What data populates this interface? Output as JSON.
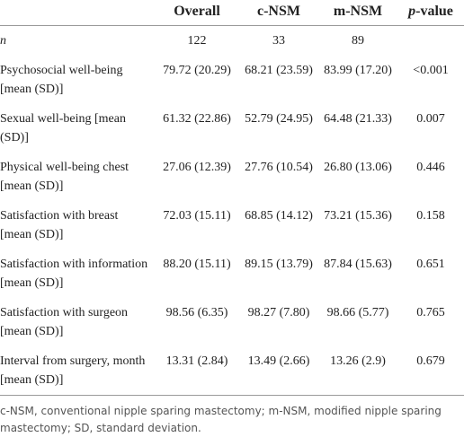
{
  "table": {
    "header": [
      "",
      "Overall",
      "c-NSM",
      "m-NSM",
      "p-value"
    ],
    "rows": [
      [
        "n",
        "122",
        "33",
        "89",
        ""
      ],
      [
        "Psychosocial well-being [mean (SD)]",
        "79.72 (20.29)",
        "68.21 (23.59)",
        "83.99 (17.20)",
        "<0.001"
      ],
      [
        "Sexual well-being [mean (SD)]",
        "61.32 (22.86)",
        "52.79 (24.95)",
        "64.48 (21.33)",
        "0.007"
      ],
      [
        "Physical well-being chest [mean (SD)]",
        "27.06 (12.39)",
        "27.76 (10.54)",
        "26.80 (13.06)",
        "0.446"
      ],
      [
        "Satisfaction with breast [mean (SD)]",
        "72.03 (15.11)",
        "68.85 (14.12)",
        "73.21 (15.36)",
        "0.158"
      ],
      [
        "Satisfaction with information [mean (SD)]",
        "88.20 (15.11)",
        "89.15 (13.79)",
        "87.84 (15.63)",
        "0.651"
      ],
      [
        "Satisfaction with surgeon [mean (SD)]",
        "98.56 (6.35)",
        "98.27 (7.80)",
        "98.66 (5.77)",
        "0.765"
      ],
      [
        "Interval from surgery, month [mean (SD)]",
        "13.31 (2.84)",
        "13.49 (2.66)",
        "13.26 (2.9)",
        "0.679"
      ]
    ],
    "footnote": "c-NSM, conventional nipple sparing mastectomy; m-NSM, modified nipple sparing mastectomy; SD, standard deviation."
  }
}
